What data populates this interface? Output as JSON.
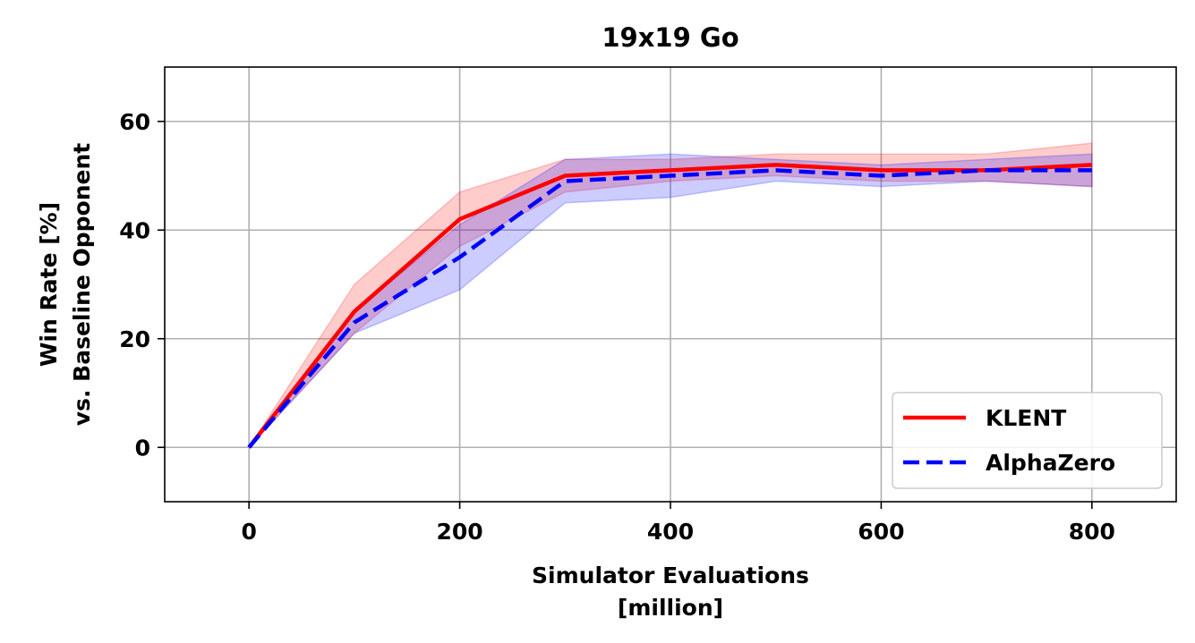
{
  "chart_data": {
    "type": "line",
    "title": "19x19 Go",
    "xlabel_lines": [
      "Simulator Evaluations",
      "[million]"
    ],
    "ylabel_lines": [
      "Win Rate [%]",
      "vs. Baseline Opponent"
    ],
    "xlim": [
      -80,
      880
    ],
    "ylim": [
      -10,
      70
    ],
    "xticks": [
      0,
      200,
      400,
      600,
      800
    ],
    "yticks": [
      0,
      20,
      40,
      60
    ],
    "xtick_labels": [
      "0",
      "200",
      "400",
      "600",
      "800"
    ],
    "ytick_labels": [
      "0",
      "20",
      "40",
      "60"
    ],
    "grid": true,
    "legend_position": "lower-right",
    "series": [
      {
        "name": "KLENT",
        "color": "#ff0000",
        "linestyle": "solid",
        "x": [
          0,
          100,
          200,
          300,
          400,
          500,
          600,
          700,
          800
        ],
        "values": [
          0,
          25,
          42,
          50,
          51,
          52,
          51,
          51,
          52
        ],
        "lower": [
          0,
          21,
          37,
          47,
          49,
          50,
          49,
          49,
          48
        ],
        "upper": [
          0,
          30,
          47,
          53,
          53,
          54,
          54,
          54,
          56
        ]
      },
      {
        "name": "AlphaZero",
        "color": "#0000ff",
        "linestyle": "dashed",
        "x": [
          0,
          100,
          200,
          300,
          400,
          500,
          600,
          700,
          800
        ],
        "values": [
          0,
          23,
          35,
          49,
          50,
          51,
          50,
          51,
          51
        ],
        "lower": [
          0,
          21,
          29,
          45,
          46,
          49,
          48,
          49,
          48
        ],
        "upper": [
          0,
          25,
          41,
          53,
          54,
          53,
          52,
          53,
          54
        ]
      }
    ]
  }
}
